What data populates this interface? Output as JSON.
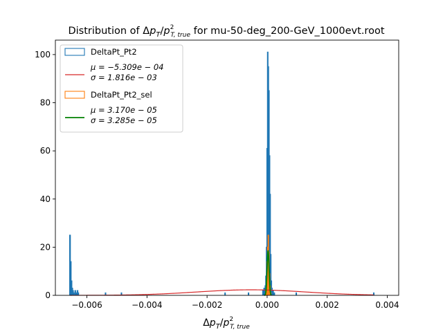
{
  "chart_data": {
    "type": "histogram",
    "title": {
      "prefix": "Distribution of ",
      "suffix": " for mu-50-deg_200-GeV_1000evt.root"
    },
    "xlabel": "Δp_T/p^2_{T,true}",
    "ylabel": "",
    "xlim": [
      -0.00705,
      0.00438
    ],
    "ylim": [
      0,
      106
    ],
    "xticks": [
      -0.006,
      -0.004,
      -0.002,
      0.0,
      0.002,
      0.004
    ],
    "xtick_labels": [
      "−0.006",
      "−0.004",
      "−0.002",
      "0.000",
      "0.002",
      "0.004"
    ],
    "yticks": [
      0,
      20,
      40,
      60,
      80,
      100
    ],
    "ytick_labels": [
      "0",
      "20",
      "40",
      "60",
      "80",
      "100"
    ],
    "grid": false,
    "legend_position": "upper-left",
    "legend": [
      {
        "label": "DeltaPt_Pt2",
        "kind": "patch",
        "color": "#1f77b4"
      },
      {
        "label_lines": [
          "μ = −5.309e − 04",
          "σ = 1.816e − 03"
        ],
        "kind": "line",
        "color": "#d62728"
      },
      {
        "label": "DeltaPt_Pt2_sel",
        "kind": "patch",
        "color": "#ff7f0e"
      },
      {
        "label_lines": [
          "μ = 3.170e − 05",
          "σ = 3.285e − 05"
        ],
        "kind": "line",
        "color": "#008000"
      }
    ],
    "series": [
      {
        "name": "DeltaPt_Pt2",
        "kind": "step-histogram",
        "color": "#1f77b4",
        "bins": [
          [
            -0.006575,
            -0.00655,
            25
          ],
          [
            -0.00655,
            -0.006525,
            14
          ],
          [
            -0.006525,
            -0.0065,
            6
          ],
          [
            -0.0065,
            -0.006475,
            3
          ],
          [
            -0.006475,
            -0.00645,
            2
          ],
          [
            -0.00645,
            -0.006425,
            1
          ],
          [
            -0.0064,
            -0.006375,
            2
          ],
          [
            -0.006375,
            -0.00635,
            1
          ],
          [
            -0.006325,
            -0.0063,
            2
          ],
          [
            -0.0063,
            -0.006275,
            1
          ],
          [
            -0.00539,
            -0.00537,
            1
          ],
          [
            -0.00486,
            -0.00484,
            1
          ],
          [
            -0.00141,
            -0.00139,
            1
          ],
          [
            -0.00063,
            -0.00061,
            1
          ],
          [
            -0.00015,
            -0.00013,
            2
          ],
          [
            -0.00013,
            -0.00011,
            1
          ],
          [
            -0.00011,
            -9e-05,
            3
          ],
          [
            -9e-05,
            -7e-05,
            2
          ],
          [
            -7e-05,
            -5e-05,
            4
          ],
          [
            -5e-05,
            -3e-05,
            8
          ],
          [
            -3e-05,
            -1e-05,
            20
          ],
          [
            -1e-05,
            1e-05,
            61
          ],
          [
            1e-05,
            3e-05,
            101
          ],
          [
            3e-05,
            5e-05,
            95
          ],
          [
            5e-05,
            7e-05,
            85
          ],
          [
            7e-05,
            9e-05,
            58
          ],
          [
            9e-05,
            0.00011,
            42
          ],
          [
            0.00011,
            0.00013,
            17
          ],
          [
            0.00013,
            0.00015,
            6
          ],
          [
            0.00015,
            0.00017,
            3
          ],
          [
            0.00017,
            0.00019,
            1
          ],
          [
            0.00019,
            0.00021,
            2
          ],
          [
            0.00023,
            0.00025,
            1
          ],
          [
            0.00096,
            0.00098,
            1
          ],
          [
            0.00354,
            0.00356,
            1
          ]
        ]
      },
      {
        "name": "DeltaPt_Pt2_sel",
        "kind": "step-histogram",
        "color": "#ff7f0e",
        "bins": [
          [
            -5e-05,
            -3e-05,
            2
          ],
          [
            -3e-05,
            -1e-05,
            6
          ],
          [
            -1e-05,
            1e-05,
            14
          ],
          [
            1e-05,
            3e-05,
            20
          ],
          [
            3e-05,
            5e-05,
            25
          ],
          [
            5e-05,
            7e-05,
            18
          ],
          [
            7e-05,
            9e-05,
            9
          ],
          [
            9e-05,
            0.00011,
            4
          ],
          [
            0.00011,
            0.00013,
            1
          ]
        ]
      },
      {
        "name": "gauss_all",
        "kind": "gaussian",
        "color": "#d62728",
        "mu": -0.0005309,
        "sigma": 0.001816,
        "amplitude": 2.3,
        "range": [
          -0.00655,
          0.00355
        ]
      },
      {
        "name": "gauss_sel",
        "kind": "gaussian",
        "color": "#008000",
        "mu": 3.17e-05,
        "sigma": 3.285e-05,
        "amplitude": 18.5,
        "range": [
          -9e-05,
          0.00014
        ]
      }
    ]
  }
}
